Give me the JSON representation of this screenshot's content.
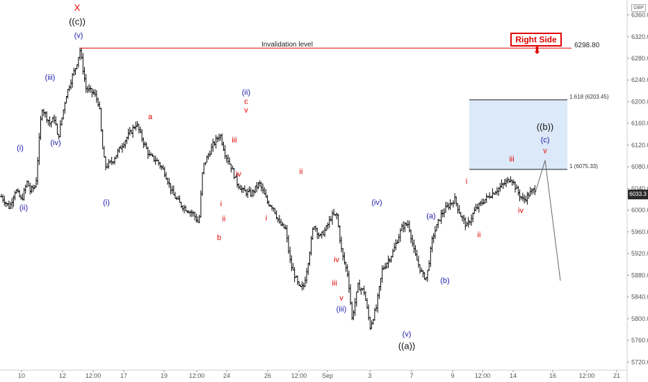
{
  "currency": "GBP",
  "last_price": "6033.3",
  "right_side_label": "Right Side",
  "right_side_arrow": "arrow-down-icon",
  "invalidation": {
    "label": "Invalidation level",
    "price_label": "6298.80",
    "price": 6298.8
  },
  "fib_levels": [
    {
      "label": "1.618 (6203.45)",
      "price": 6203.45
    },
    {
      "label": "1 (6075.33)",
      "price": 6075.33
    }
  ],
  "colors": {
    "wave_blue": "#1a1aa8",
    "wave_red": "#e00000",
    "wave_black": "#111111",
    "zone": "#cfe2f5",
    "zone_border": "#1a1a1a",
    "invalidation_line": "#e00000"
  },
  "chart_data": {
    "type": "ohlc",
    "title": "",
    "xlabel": "",
    "ylabel": "",
    "ylim": [
      5705,
      6385
    ],
    "y_ticks": [
      5720,
      5760,
      5800,
      5840,
      5880,
      5920,
      5960,
      6000,
      6040,
      6080,
      6120,
      6160,
      6200,
      6240,
      6280,
      6320,
      6360
    ],
    "x_ticks": [
      "10",
      "12",
      "12:00",
      "17",
      "19",
      "12:00",
      "24",
      "26",
      "12:00",
      "Sep",
      "3",
      "7",
      "9",
      "12:00",
      "14",
      "16",
      "12:00",
      "21"
    ],
    "x_tick_index": [
      14,
      40,
      60,
      82,
      110,
      132,
      153,
      180,
      203,
      222,
      250,
      280,
      308,
      330,
      351,
      378,
      401,
      422
    ],
    "n_bars": 374,
    "path_points": [
      [
        0,
        6025
      ],
      [
        8,
        6005
      ],
      [
        14,
        6038
      ],
      [
        20,
        6018
      ],
      [
        26,
        6055
      ],
      [
        28,
        6035
      ],
      [
        34,
        6045
      ],
      [
        40,
        6190
      ],
      [
        48,
        6160
      ],
      [
        53,
        6170
      ],
      [
        56,
        6130
      ],
      [
        64,
        6210
      ],
      [
        70,
        6245
      ],
      [
        74,
        6265
      ],
      [
        78,
        6295
      ],
      [
        84,
        6225
      ],
      [
        92,
        6215
      ],
      [
        97,
        6195
      ],
      [
        100,
        6120
      ],
      [
        103,
        6080
      ],
      [
        110,
        6090
      ],
      [
        118,
        6115
      ],
      [
        125,
        6135
      ],
      [
        134,
        6160
      ],
      [
        140,
        6130
      ],
      [
        147,
        6100
      ],
      [
        155,
        6090
      ],
      [
        162,
        6070
      ],
      [
        170,
        6030
      ],
      [
        178,
        6010
      ],
      [
        185,
        6000
      ],
      [
        190,
        5995
      ],
      [
        196,
        5975
      ],
      [
        200,
        6080
      ],
      [
        210,
        6120
      ],
      [
        217,
        6140
      ],
      [
        222,
        6105
      ],
      [
        228,
        6080
      ],
      [
        234,
        6050
      ],
      [
        240,
        6035
      ],
      [
        248,
        6030
      ],
      [
        256,
        6050
      ],
      [
        264,
        6015
      ],
      [
        270,
        6005
      ],
      [
        276,
        5975
      ],
      [
        282,
        5965
      ],
      [
        287,
        5900
      ],
      [
        292,
        5875
      ],
      [
        296,
        5855
      ],
      [
        300,
        5860
      ],
      [
        304,
        5900
      ],
      [
        310,
        5975
      ],
      [
        316,
        5950
      ],
      [
        322,
        5965
      ],
      [
        328,
        5990
      ],
      [
        333,
        5990
      ],
      [
        338,
        5920
      ],
      [
        344,
        5880
      ],
      [
        348,
        5800
      ],
      [
        354,
        5860
      ],
      [
        360,
        5850
      ],
      [
        366,
        5785
      ],
      [
        372,
        5820
      ],
      [
        378,
        5890
      ],
      [
        388,
        5920
      ],
      [
        398,
        5970
      ],
      [
        404,
        5975
      ],
      [
        410,
        5920
      ],
      [
        418,
        5880
      ],
      [
        422,
        5875
      ],
      [
        428,
        5950
      ],
      [
        436,
        5990
      ],
      [
        442,
        6005
      ],
      [
        450,
        6020
      ],
      [
        456,
        5990
      ],
      [
        462,
        5970
      ],
      [
        470,
        6000
      ],
      [
        480,
        6020
      ],
      [
        490,
        6035
      ],
      [
        500,
        6050
      ],
      [
        506,
        6060
      ],
      [
        512,
        6035
      ],
      [
        518,
        6018
      ],
      [
        524,
        6030
      ],
      [
        530,
        6040
      ]
    ],
    "projection": [
      [
        770,
        6033
      ],
      [
        784,
        6092
      ],
      [
        806,
        5870
      ]
    ],
    "wave_labels": [
      {
        "text": "(i)",
        "x": 29,
        "price": 6110,
        "color": "blue"
      },
      {
        "text": "(ii)",
        "x": 34,
        "price": 6000,
        "color": "blue"
      },
      {
        "text": "(iii)",
        "x": 72,
        "price": 6240,
        "color": "blue"
      },
      {
        "text": "(iv)",
        "x": 80,
        "price": 6120,
        "color": "blue"
      },
      {
        "text": "(v)",
        "x": 113,
        "price": 6318,
        "color": "blue"
      },
      {
        "text": "((c))",
        "x": 111,
        "price": 6342,
        "color": "black"
      },
      {
        "text": "X",
        "x": 111,
        "price": 6368,
        "color": "red"
      },
      {
        "text": "(i)",
        "x": 153,
        "price": 6010,
        "color": "blue"
      },
      {
        "text": "a",
        "x": 216,
        "price": 6168,
        "color": "red"
      },
      {
        "text": "i",
        "x": 318,
        "price": 6007,
        "color": "red"
      },
      {
        "text": "ii",
        "x": 322,
        "price": 5980,
        "color": "red"
      },
      {
        "text": "b",
        "x": 315,
        "price": 5945,
        "color": "red"
      },
      {
        "text": "iii",
        "x": 337,
        "price": 6125,
        "color": "red"
      },
      {
        "text": "iv",
        "x": 343,
        "price": 6062,
        "color": "red"
      },
      {
        "text": "(ii)",
        "x": 354,
        "price": 6213,
        "color": "blue"
      },
      {
        "text": "c",
        "x": 354,
        "price": 6196,
        "color": "red"
      },
      {
        "text": "v",
        "x": 354,
        "price": 6180,
        "color": "red"
      },
      {
        "text": "ii",
        "x": 433,
        "price": 6067,
        "color": "red"
      },
      {
        "text": "i",
        "x": 383,
        "price": 5981,
        "color": "red"
      },
      {
        "text": "iv",
        "x": 484,
        "price": 5904,
        "color": "red"
      },
      {
        "text": "iii",
        "x": 481,
        "price": 5861,
        "color": "red"
      },
      {
        "text": "v",
        "x": 491,
        "price": 5834,
        "color": "red"
      },
      {
        "text": "(iii)",
        "x": 491,
        "price": 5813,
        "color": "blue"
      },
      {
        "text": "(iv)",
        "x": 542,
        "price": 6010,
        "color": "blue"
      },
      {
        "text": "(v)",
        "x": 585,
        "price": 5767,
        "color": "blue"
      },
      {
        "text": "((a))",
        "x": 585,
        "price": 5744,
        "color": "black"
      },
      {
        "text": "(a)",
        "x": 620,
        "price": 5985,
        "color": "blue"
      },
      {
        "text": "(b)",
        "x": 640,
        "price": 5866,
        "color": "blue"
      },
      {
        "text": "i",
        "x": 671,
        "price": 6049,
        "color": "red"
      },
      {
        "text": "ii",
        "x": 689,
        "price": 5950,
        "color": "red"
      },
      {
        "text": "iii",
        "x": 736,
        "price": 6090,
        "color": "red"
      },
      {
        "text": "iv",
        "x": 749,
        "price": 5995,
        "color": "red"
      },
      {
        "text": "((b))",
        "x": 784,
        "price": 6148,
        "color": "black"
      },
      {
        "text": "(c)",
        "x": 784,
        "price": 6125,
        "color": "blue"
      },
      {
        "text": "v",
        "x": 784,
        "price": 6105,
        "color": "red"
      }
    ]
  }
}
